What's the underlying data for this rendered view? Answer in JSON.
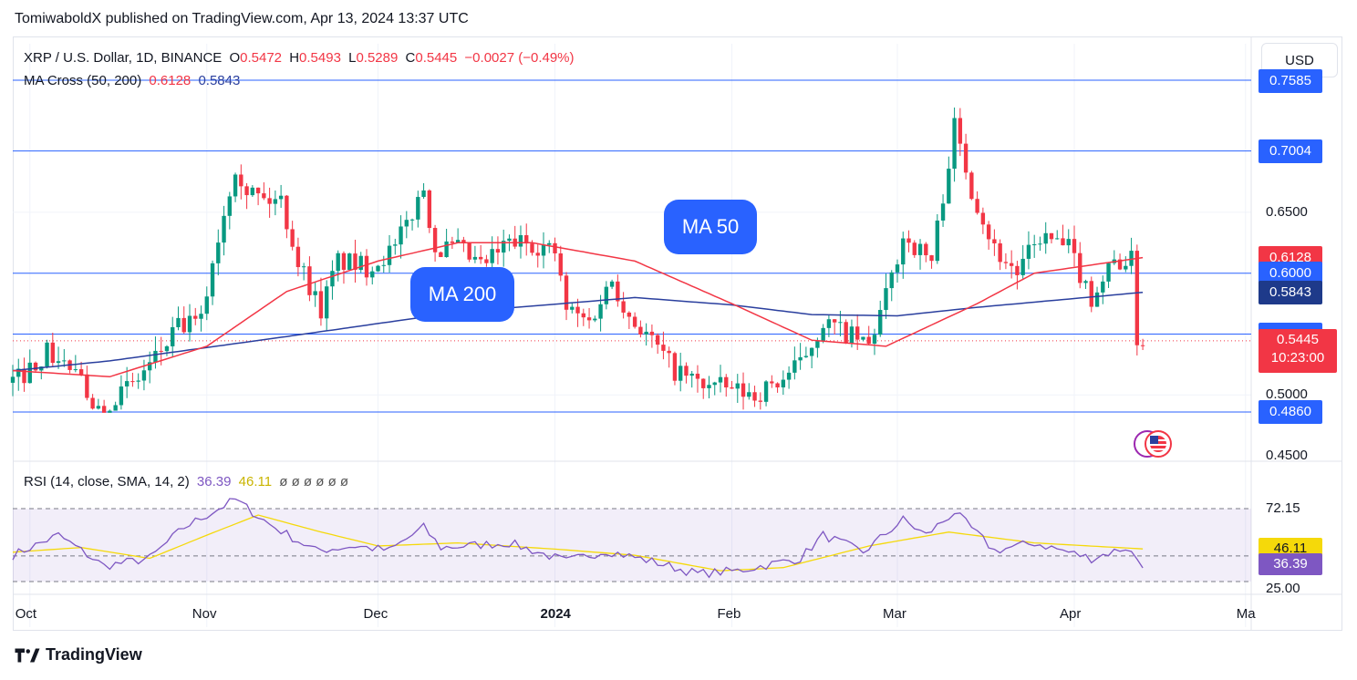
{
  "header": {
    "published": "TomiwaboldX published on TradingView.com, Apr 13, 2024 13:37 UTC"
  },
  "legend": {
    "symbol": "XRP / U.S. Dollar, 1D, BINANCE",
    "open_label": "O",
    "open": "0.5472",
    "high_label": "H",
    "high": "0.5493",
    "low_label": "L",
    "low": "0.5289",
    "close_label": "C",
    "close": "0.5445",
    "change": "−0.0027 (−0.49%)",
    "ma_name": "MA Cross (50, 200)",
    "ma_fast": "0.6128",
    "ma_slow": "0.5843",
    "rsi_name": "RSI (14, close, SMA, 14, 2)",
    "rsi_value": "36.39",
    "rsi_sma": "46.11",
    "rsi_extras": "ø  ø  ø  ø  ø  ø"
  },
  "currency_button": "USD",
  "annotations": {
    "ma50": "MA 50",
    "ma200": "MA 200"
  },
  "price_axis": {
    "ticks": [
      "0.6500",
      "0.5000",
      "0.4500"
    ],
    "labels": [
      {
        "text": "0.7585",
        "value": 0.7585,
        "color": "#2962ff"
      },
      {
        "text": "0.7004",
        "value": 0.7004,
        "color": "#2962ff"
      },
      {
        "text": "0.6128",
        "value": 0.6128,
        "color": "#f23645"
      },
      {
        "text": "0.6000",
        "value": 0.6,
        "color": "#2962ff"
      },
      {
        "text": "0.5843",
        "value": 0.5843,
        "color": "#1e3a8a"
      },
      {
        "text": "0.5500",
        "value": 0.55,
        "color": "#2962ff"
      },
      {
        "text": "0.5445",
        "value": 0.5445,
        "color": "#f23645"
      },
      {
        "text": "0.4860",
        "value": 0.486,
        "color": "#2962ff"
      }
    ],
    "countdown": "10:23:00"
  },
  "rsi_axis": {
    "ticks": [
      "72.15",
      "41.55",
      "25.00"
    ],
    "sma_label": "46.11",
    "value_label": "36.39"
  },
  "time_axis": [
    "Oct",
    "Nov",
    "Dec",
    "2024",
    "Feb",
    "Mar",
    "Apr",
    "Ma"
  ],
  "footer": {
    "brand": "TradingView"
  },
  "colors": {
    "up": "#089981",
    "down": "#f23645",
    "ma_fast": "#f23645",
    "ma_slow": "#2a3f9e",
    "rsi": "#7e57c2",
    "rsi_sma": "#f5d90a",
    "hline": "#2962ff"
  },
  "chart_data": [
    {
      "type": "candlestick",
      "title": "XRP / U.S. Dollar, 1D, BINANCE",
      "ylim": [
        0.45,
        0.76
      ],
      "x_range": [
        "2023-09-28",
        "2024-05-02"
      ],
      "last_date": "2024-04-13",
      "horizontal_levels": [
        0.7585,
        0.7004,
        0.6,
        0.55,
        0.486
      ],
      "price_anchors": [
        [
          "2023-09-28",
          0.51
        ],
        [
          "2023-10-04",
          0.535
        ],
        [
          "2023-10-08",
          0.522
        ],
        [
          "2023-10-13",
          0.49
        ],
        [
          "2023-10-19",
          0.508
        ],
        [
          "2023-10-23",
          0.53
        ],
        [
          "2023-10-27",
          0.555
        ],
        [
          "2023-10-31",
          0.56
        ],
        [
          "2023-11-02",
          0.61
        ],
        [
          "2023-11-06",
          0.69
        ],
        [
          "2023-11-08",
          0.67
        ],
        [
          "2023-11-11",
          0.66
        ],
        [
          "2023-11-14",
          0.66
        ],
        [
          "2023-11-17",
          0.61
        ],
        [
          "2023-11-21",
          0.57
        ],
        [
          "2023-11-24",
          0.61
        ],
        [
          "2023-11-29",
          0.605
        ],
        [
          "2023-12-04",
          0.62
        ],
        [
          "2023-12-09",
          0.67
        ],
        [
          "2023-12-11",
          0.62
        ],
        [
          "2023-12-15",
          0.62
        ],
        [
          "2023-12-19",
          0.605
        ],
        [
          "2023-12-24",
          0.625
        ],
        [
          "2023-12-28",
          0.625
        ],
        [
          "2024-01-01",
          0.617
        ],
        [
          "2024-01-03",
          0.57
        ],
        [
          "2024-01-07",
          0.56
        ],
        [
          "2024-01-11",
          0.595
        ],
        [
          "2024-01-14",
          0.565
        ],
        [
          "2024-01-17",
          0.55
        ],
        [
          "2024-01-22",
          0.52
        ],
        [
          "2024-01-26",
          0.51
        ],
        [
          "2024-01-31",
          0.505
        ],
        [
          "2024-02-05",
          0.5
        ],
        [
          "2024-02-09",
          0.51
        ],
        [
          "2024-02-13",
          0.525
        ],
        [
          "2024-02-17",
          0.56
        ],
        [
          "2024-02-21",
          0.55
        ],
        [
          "2024-02-25",
          0.54
        ],
        [
          "2024-02-28",
          0.58
        ],
        [
          "2024-03-02",
          0.63
        ],
        [
          "2024-03-07",
          0.61
        ],
        [
          "2024-03-11",
          0.72
        ],
        [
          "2024-03-14",
          0.67
        ],
        [
          "2024-03-18",
          0.62
        ],
        [
          "2024-03-22",
          0.6
        ],
        [
          "2024-03-26",
          0.63
        ],
        [
          "2024-03-31",
          0.62
        ],
        [
          "2024-04-04",
          0.58
        ],
        [
          "2024-04-08",
          0.61
        ],
        [
          "2024-04-11",
          0.61
        ],
        [
          "2024-04-12",
          0.547
        ],
        [
          "2024-04-13",
          0.5445
        ]
      ],
      "ma50_anchors": [
        [
          "2023-09-28",
          0.52
        ],
        [
          "2023-10-15",
          0.515
        ],
        [
          "2023-11-01",
          0.54
        ],
        [
          "2023-11-15",
          0.585
        ],
        [
          "2023-12-01",
          0.61
        ],
        [
          "2023-12-15",
          0.625
        ],
        [
          "2023-12-28",
          0.625
        ],
        [
          "2024-01-15",
          0.61
        ],
        [
          "2024-02-01",
          0.575
        ],
        [
          "2024-02-15",
          0.545
        ],
        [
          "2024-02-28",
          0.54
        ],
        [
          "2024-03-15",
          0.575
        ],
        [
          "2024-03-25",
          0.6
        ],
        [
          "2024-04-13",
          0.6128
        ]
      ],
      "ma200_anchors": [
        [
          "2023-09-28",
          0.52
        ],
        [
          "2023-10-15",
          0.528
        ],
        [
          "2023-11-15",
          0.548
        ],
        [
          "2023-12-15",
          0.568
        ],
        [
          "2024-01-15",
          0.58
        ],
        [
          "2024-02-01",
          0.574
        ],
        [
          "2024-02-15",
          0.566
        ],
        [
          "2024-03-01",
          0.565
        ],
        [
          "2024-03-15",
          0.572
        ],
        [
          "2024-04-13",
          0.5843
        ]
      ]
    },
    {
      "type": "line",
      "title": "RSI (14, close, SMA, 14, 2)",
      "ylim": [
        25,
        80
      ],
      "levels": [
        72.15,
        41.55,
        25.0
      ],
      "series": [
        {
          "name": "RSI",
          "anchors": [
            [
              "2023-09-28",
              42
            ],
            [
              "2023-10-06",
              55
            ],
            [
              "2023-10-14",
              35
            ],
            [
              "2023-10-22",
              40
            ],
            [
              "2023-10-28",
              60
            ],
            [
              "2023-11-06",
              78
            ],
            [
              "2023-11-12",
              62
            ],
            [
              "2023-11-20",
              45
            ],
            [
              "2023-11-27",
              48
            ],
            [
              "2023-12-03",
              45
            ],
            [
              "2023-12-09",
              60
            ],
            [
              "2023-12-12",
              47
            ],
            [
              "2023-12-24",
              50
            ],
            [
              "2024-01-03",
              38
            ],
            [
              "2024-01-10",
              45
            ],
            [
              "2024-01-18",
              38
            ],
            [
              "2024-01-26",
              30
            ],
            [
              "2024-02-02",
              32
            ],
            [
              "2024-02-13",
              40
            ],
            [
              "2024-02-17",
              55
            ],
            [
              "2024-02-24",
              44
            ],
            [
              "2024-03-02",
              65
            ],
            [
              "2024-03-06",
              55
            ],
            [
              "2024-03-11",
              70
            ],
            [
              "2024-03-18",
              45
            ],
            [
              "2024-03-25",
              50
            ],
            [
              "2024-04-04",
              40
            ],
            [
              "2024-04-10",
              47
            ],
            [
              "2024-04-13",
              36.39
            ]
          ]
        },
        {
          "name": "SMA",
          "anchors": [
            [
              "2023-09-28",
              44
            ],
            [
              "2023-10-10",
              47
            ],
            [
              "2023-10-22",
              40
            ],
            [
              "2023-11-01",
              55
            ],
            [
              "2023-11-10",
              68
            ],
            [
              "2023-11-20",
              58
            ],
            [
              "2023-12-01",
              48
            ],
            [
              "2023-12-15",
              50
            ],
            [
              "2024-01-01",
              46
            ],
            [
              "2024-01-15",
              42
            ],
            [
              "2024-01-30",
              32
            ],
            [
              "2024-02-10",
              34
            ],
            [
              "2024-02-25",
              48
            ],
            [
              "2024-03-10",
              57
            ],
            [
              "2024-03-25",
              50
            ],
            [
              "2024-04-13",
              46.11
            ]
          ]
        }
      ]
    }
  ]
}
